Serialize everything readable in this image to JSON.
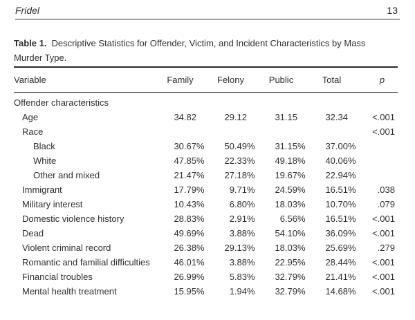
{
  "page": {
    "running_head": "Fridel",
    "page_number": "13"
  },
  "table": {
    "title_label": "Table 1.",
    "title_text": "Descriptive Statistics for Offender, Victim, and Incident Characteristics by Mass Murder Type.",
    "columns": [
      "Variable",
      "Family",
      "Felony",
      "Public",
      "Total",
      "p"
    ],
    "rows": [
      {
        "label": "Offender characteristics",
        "indent": 0,
        "values": [
          "",
          "",
          "",
          ""
        ],
        "p": ""
      },
      {
        "label": "Age",
        "indent": 1,
        "values": [
          "34.82",
          "29.12",
          "31.15",
          "32.34"
        ],
        "p": "<.001"
      },
      {
        "label": "Race",
        "indent": 1,
        "values": [
          "",
          "",
          "",
          ""
        ],
        "p": "<.001"
      },
      {
        "label": "Black",
        "indent": 2,
        "values": [
          "30.67%",
          "50.49%",
          "31.15%",
          "37.00%"
        ],
        "p": ""
      },
      {
        "label": "White",
        "indent": 2,
        "values": [
          "47.85%",
          "22.33%",
          "49.18%",
          "40.06%"
        ],
        "p": ""
      },
      {
        "label": "Other and mixed",
        "indent": 2,
        "values": [
          "21.47%",
          "27.18%",
          "19.67%",
          "22.94%"
        ],
        "p": ""
      },
      {
        "label": "Immigrant",
        "indent": 1,
        "values": [
          "17.79%",
          "9.71%",
          "24.59%",
          "16.51%"
        ],
        "p": ".038"
      },
      {
        "label": "Military interest",
        "indent": 1,
        "values": [
          "10.43%",
          "6.80%",
          "18.03%",
          "10.70%"
        ],
        "p": ".079"
      },
      {
        "label": "Domestic violence history",
        "indent": 1,
        "values": [
          "28.83%",
          "2.91%",
          "6.56%",
          "16.51%"
        ],
        "p": "<.001"
      },
      {
        "label": "Dead",
        "indent": 1,
        "values": [
          "49.69%",
          "3.88%",
          "54.10%",
          "36.09%"
        ],
        "p": "<.001"
      },
      {
        "label": "Violent criminal record",
        "indent": 1,
        "values": [
          "26.38%",
          "29.13%",
          "18.03%",
          "25.69%"
        ],
        "p": ".279"
      },
      {
        "label": "Romantic and familial difficulties",
        "indent": 1,
        "values": [
          "46.01%",
          "3.88%",
          "22.95%",
          "28.44%"
        ],
        "p": "<.001"
      },
      {
        "label": "Financial troubles",
        "indent": 1,
        "values": [
          "26.99%",
          "5.83%",
          "32.79%",
          "21.41%"
        ],
        "p": "<.001"
      },
      {
        "label": "Mental health treatment",
        "indent": 1,
        "values": [
          "15.95%",
          "1.94%",
          "32.79%",
          "14.68%"
        ],
        "p": "<.001"
      }
    ]
  }
}
